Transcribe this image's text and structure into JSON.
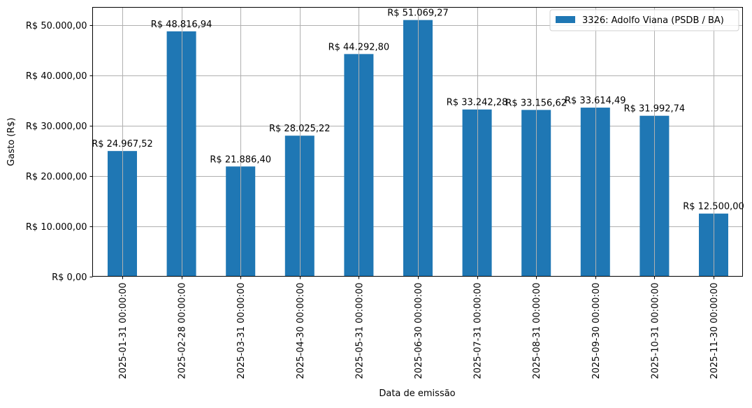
{
  "chart_data": {
    "type": "bar",
    "title": "",
    "xlabel": "Data de emissão",
    "ylabel": "Gasto (R$)",
    "ylim": [
      0,
      53600
    ],
    "grid": true,
    "legend_position": "upper right",
    "colors": {
      "bar": "#1f77b4",
      "grid": "#b0b0b0",
      "axis": "#000000"
    },
    "categories": [
      "2025-01-31 00:00:00",
      "2025-02-28 00:00:00",
      "2025-03-31 00:00:00",
      "2025-04-30 00:00:00",
      "2025-05-31 00:00:00",
      "2025-06-30 00:00:00",
      "2025-07-31 00:00:00",
      "2025-08-31 00:00:00",
      "2025-09-30 00:00:00",
      "2025-10-31 00:00:00",
      "2025-11-30 00:00:00"
    ],
    "series": [
      {
        "name": "3326: Adolfo Viana (PSDB / BA)",
        "values": [
          24967.52,
          48816.94,
          21886.4,
          28025.22,
          44292.8,
          51069.27,
          33242.28,
          33156.62,
          33614.49,
          31992.74,
          12500.0
        ]
      }
    ],
    "value_labels": [
      "R$ 24.967,52",
      "R$ 48.816,94",
      "R$ 21.886,40",
      "R$ 28.025,22",
      "R$ 44.292,80",
      "R$ 51.069,27",
      "R$ 33.242,28",
      "R$ 33.156,62",
      "R$ 33.614,49",
      "R$ 31.992,74",
      "R$ 12.500,00"
    ],
    "yticks": [
      0,
      10000,
      20000,
      30000,
      40000,
      50000
    ],
    "ytick_labels": [
      "R$ 0,00",
      "R$ 10.000,00",
      "R$ 20.000,00",
      "R$ 30.000,00",
      "R$ 40.000,00",
      "R$ 50.000,00"
    ]
  }
}
